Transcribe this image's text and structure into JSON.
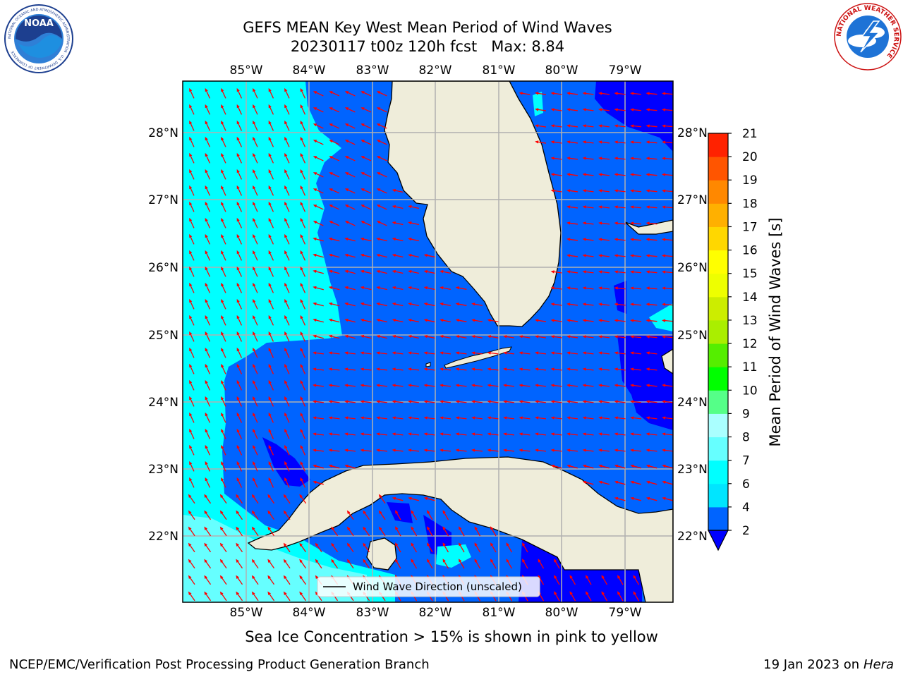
{
  "title": {
    "line1": "GEFS MEAN Key West Mean Period of Wind Waves",
    "line2": "20230117 t00z 120h fcst   Max: 8.84"
  },
  "logos": {
    "noaa": {
      "text": "NOAA",
      "ring_text": "NATIONAL OCEANIC AND ATMOSPHERIC ADMINISTRATION · U.S. DEPARTMENT OF COMMERCE"
    },
    "nws": {
      "ring_text": "NATIONAL WEATHER SERVICE"
    }
  },
  "map": {
    "lon_labels": [
      "85°W",
      "84°W",
      "83°W",
      "82°W",
      "81°W",
      "80°W",
      "79°W"
    ],
    "lat_labels": [
      "28°N",
      "27°N",
      "26°N",
      "25°N",
      "24°N",
      "23°N",
      "22°N"
    ],
    "legend_label": "Wind Wave Direction (unscaled)",
    "colors": {
      "land": "#efedda",
      "coast": "#000000",
      "grid": "#b0b0b0",
      "arrow": "#ff0000"
    }
  },
  "colorbar": {
    "label": "Mean Period of Wind Waves [s]",
    "ticks": [
      "2",
      "4",
      "6",
      "7",
      "8",
      "9",
      "10",
      "11",
      "12",
      "13",
      "14",
      "15",
      "16",
      "17",
      "18",
      "19",
      "20",
      "21"
    ],
    "colors": [
      "#0064ff",
      "#00e5ff",
      "#00ffff",
      "#66ffff",
      "#aaffff",
      "#55ff88",
      "#00ff00",
      "#55ee00",
      "#aaee00",
      "#cced00",
      "#eeff00",
      "#ffff00",
      "#ffd700",
      "#ffb000",
      "#ff8800",
      "#ff5500",
      "#ff2200",
      "#ff0000"
    ],
    "under_color": "#0000ff"
  },
  "caption": "Sea Ice Concentration > 15% is shown in pink to yellow",
  "footer": {
    "left": "NCEP/EMC/Verification Post Processing Product Generation Branch",
    "right_prefix": "19 Jan 2023 on",
    "right_machine": "Hera"
  }
}
